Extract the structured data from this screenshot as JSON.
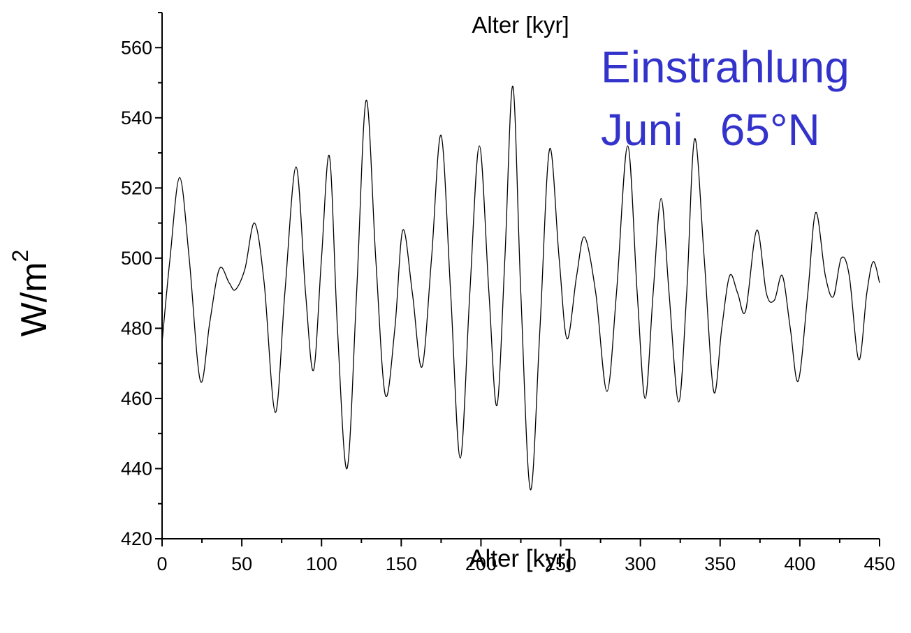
{
  "chart_data": {
    "type": "line",
    "title": "Alter [kyr]",
    "xlabel": "Alter [kyr]",
    "ylabel": "W/m",
    "ylabel_superscript": "2",
    "xlim": [
      0,
      450
    ],
    "ylim": [
      420,
      570
    ],
    "x_ticks": [
      0,
      50,
      100,
      150,
      200,
      250,
      300,
      350,
      400,
      450
    ],
    "y_ticks": [
      420,
      440,
      460,
      480,
      500,
      520,
      540,
      560
    ],
    "x_minor_step": 25,
    "y_minor_step": 10,
    "grid": false,
    "line_color": "#000000",
    "annotation": {
      "lines": [
        "Einstrahlung",
        "Juni   65°N"
      ],
      "color": "#3333cc",
      "placement": "top-right"
    },
    "series": [
      {
        "x": [
          0,
          5,
          11,
          17,
          24,
          30,
          36,
          42,
          46,
          52,
          58,
          64,
          71,
          77,
          84,
          90,
          95,
          100,
          105,
          110,
          116,
          122,
          128,
          134,
          140,
          146,
          151,
          157,
          163,
          169,
          175,
          181,
          187,
          193,
          199,
          205,
          210,
          215,
          220,
          225,
          231,
          237,
          243,
          249,
          254,
          260,
          265,
          272,
          279,
          285,
          292,
          298,
          303,
          308,
          313,
          318,
          324,
          329,
          334,
          340,
          346,
          351,
          356,
          361,
          366,
          373,
          379,
          384,
          389,
          394,
          399,
          405,
          410,
          416,
          421,
          426,
          431,
          437,
          442,
          446,
          450
        ],
        "y": [
          476,
          500,
          523,
          500,
          465,
          482,
          497,
          493,
          491,
          497,
          510,
          493,
          456,
          490,
          526,
          490,
          468,
          500,
          529,
          480,
          440,
          490,
          545,
          500,
          461,
          480,
          508,
          490,
          469,
          500,
          535,
          490,
          443,
          490,
          532,
          490,
          458,
          500,
          549,
          490,
          434,
          480,
          531,
          500,
          477,
          495,
          506,
          490,
          462,
          490,
          532,
          490,
          460,
          490,
          517,
          490,
          459,
          490,
          534,
          500,
          462,
          480,
          495,
          490,
          485,
          508,
          490,
          488,
          495,
          480,
          465,
          490,
          513,
          495,
          489,
          500,
          495,
          471,
          490,
          499,
          493
        ]
      }
    ]
  }
}
